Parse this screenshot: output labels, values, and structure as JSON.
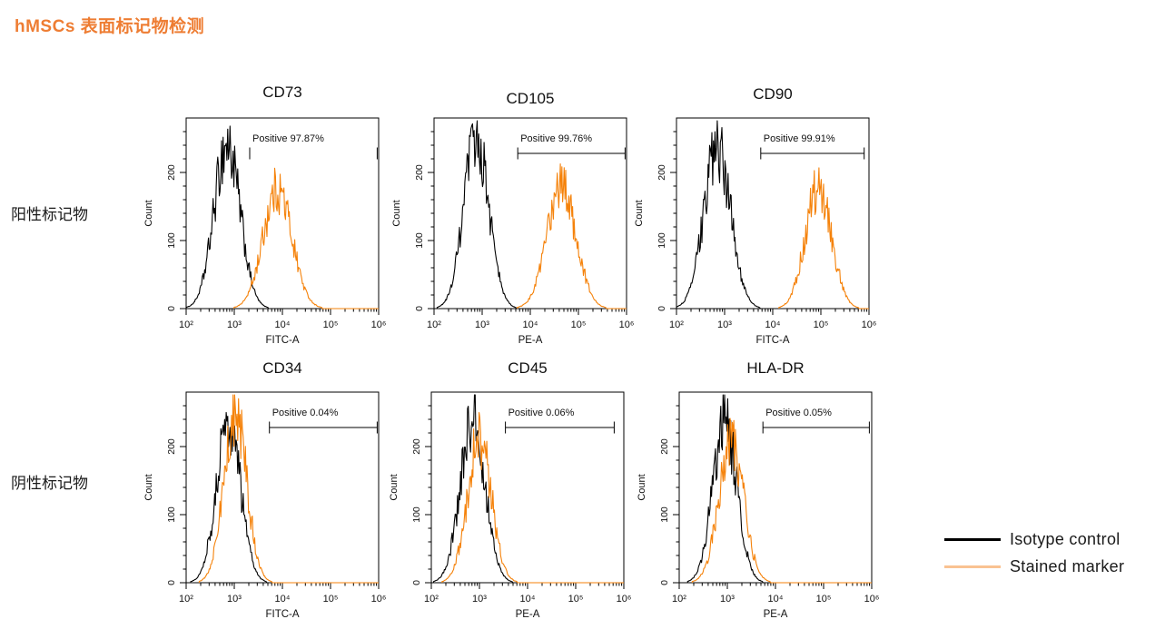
{
  "page_title": "hMSCs 表面标记物检测",
  "row_labels": {
    "positive": "阳性标记物",
    "negative": "阴性标记物"
  },
  "colors": {
    "title": "#EE7D33",
    "isotype_curve": "#000000",
    "stained_curve": "#F5820A",
    "stained_legend": "#F9C292",
    "axis": "#000000"
  },
  "legend": {
    "items": [
      {
        "label": "Isotype control",
        "color": "#000000"
      },
      {
        "label": "Stained marker",
        "color": "#F9C292"
      }
    ]
  },
  "chart_data": {
    "type": "histogram-overlay-grid",
    "ylabel": "Count",
    "ylim": [
      0,
      280
    ],
    "y_ticks": [
      0,
      100,
      200
    ],
    "x_ticks": [
      "10²",
      "10³",
      "10⁴",
      "10⁵",
      "10⁶"
    ],
    "xlog_range": [
      2,
      6
    ],
    "grid": "off",
    "plots": [
      {
        "title": "CD73",
        "xlabel": "FITC-A",
        "group": "positive",
        "gate_label": "Positive  97.87%",
        "gate_from_log": 3.32,
        "gate_to_log": 5.97,
        "gate_line": false,
        "series": [
          {
            "name": "Isotype control",
            "peak_log": 2.85,
            "sigma": 0.27,
            "peak_count": 240
          },
          {
            "name": "Stained marker",
            "peak_log": 3.9,
            "sigma": 0.3,
            "peak_count": 175
          }
        ]
      },
      {
        "title": "CD105",
        "xlabel": "PE-A",
        "group": "positive",
        "gate_label": "Positive  99.76%",
        "gate_from_log": 3.74,
        "gate_to_log": 5.97,
        "gate_line": true,
        "series": [
          {
            "name": "Isotype control",
            "peak_log": 2.88,
            "sigma": 0.26,
            "peak_count": 250
          },
          {
            "name": "Stained marker",
            "peak_log": 4.65,
            "sigma": 0.3,
            "peak_count": 180
          }
        ]
      },
      {
        "title": "CD90",
        "xlabel": "FITC-A",
        "group": "positive",
        "gate_label": "Positive  99.91%",
        "gate_from_log": 3.75,
        "gate_to_log": 5.9,
        "gate_line": true,
        "series": [
          {
            "name": "Isotype control",
            "peak_log": 2.85,
            "sigma": 0.28,
            "peak_count": 235
          },
          {
            "name": "Stained marker",
            "peak_log": 4.95,
            "sigma": 0.27,
            "peak_count": 180
          }
        ]
      },
      {
        "title": "CD34",
        "xlabel": "FITC-A",
        "group": "negative",
        "gate_label": "Positive  0.04%",
        "gate_from_log": 3.73,
        "gate_to_log": 5.97,
        "gate_line": true,
        "series": [
          {
            "name": "Isotype control",
            "peak_log": 2.88,
            "sigma": 0.25,
            "peak_count": 235
          },
          {
            "name": "Stained marker",
            "peak_log": 3.02,
            "sigma": 0.24,
            "peak_count": 245
          }
        ]
      },
      {
        "title": "CD45",
        "xlabel": "PE-A",
        "group": "negative",
        "gate_label": "Positive  0.06%",
        "gate_from_log": 3.54,
        "gate_to_log": 5.8,
        "gate_line": true,
        "series": [
          {
            "name": "Isotype control",
            "peak_log": 2.86,
            "sigma": 0.26,
            "peak_count": 235
          },
          {
            "name": "Stained marker",
            "peak_log": 3.0,
            "sigma": 0.25,
            "peak_count": 210
          }
        ]
      },
      {
        "title": "HLA-DR",
        "xlabel": "PE-A",
        "group": "negative",
        "gate_label": "Positive  0.05%",
        "gate_from_log": 3.74,
        "gate_to_log": 5.95,
        "gate_line": true,
        "series": [
          {
            "name": "Isotype control",
            "peak_log": 2.95,
            "sigma": 0.25,
            "peak_count": 235
          },
          {
            "name": "Stained marker",
            "peak_log": 3.08,
            "sigma": 0.26,
            "peak_count": 205
          }
        ]
      }
    ]
  }
}
